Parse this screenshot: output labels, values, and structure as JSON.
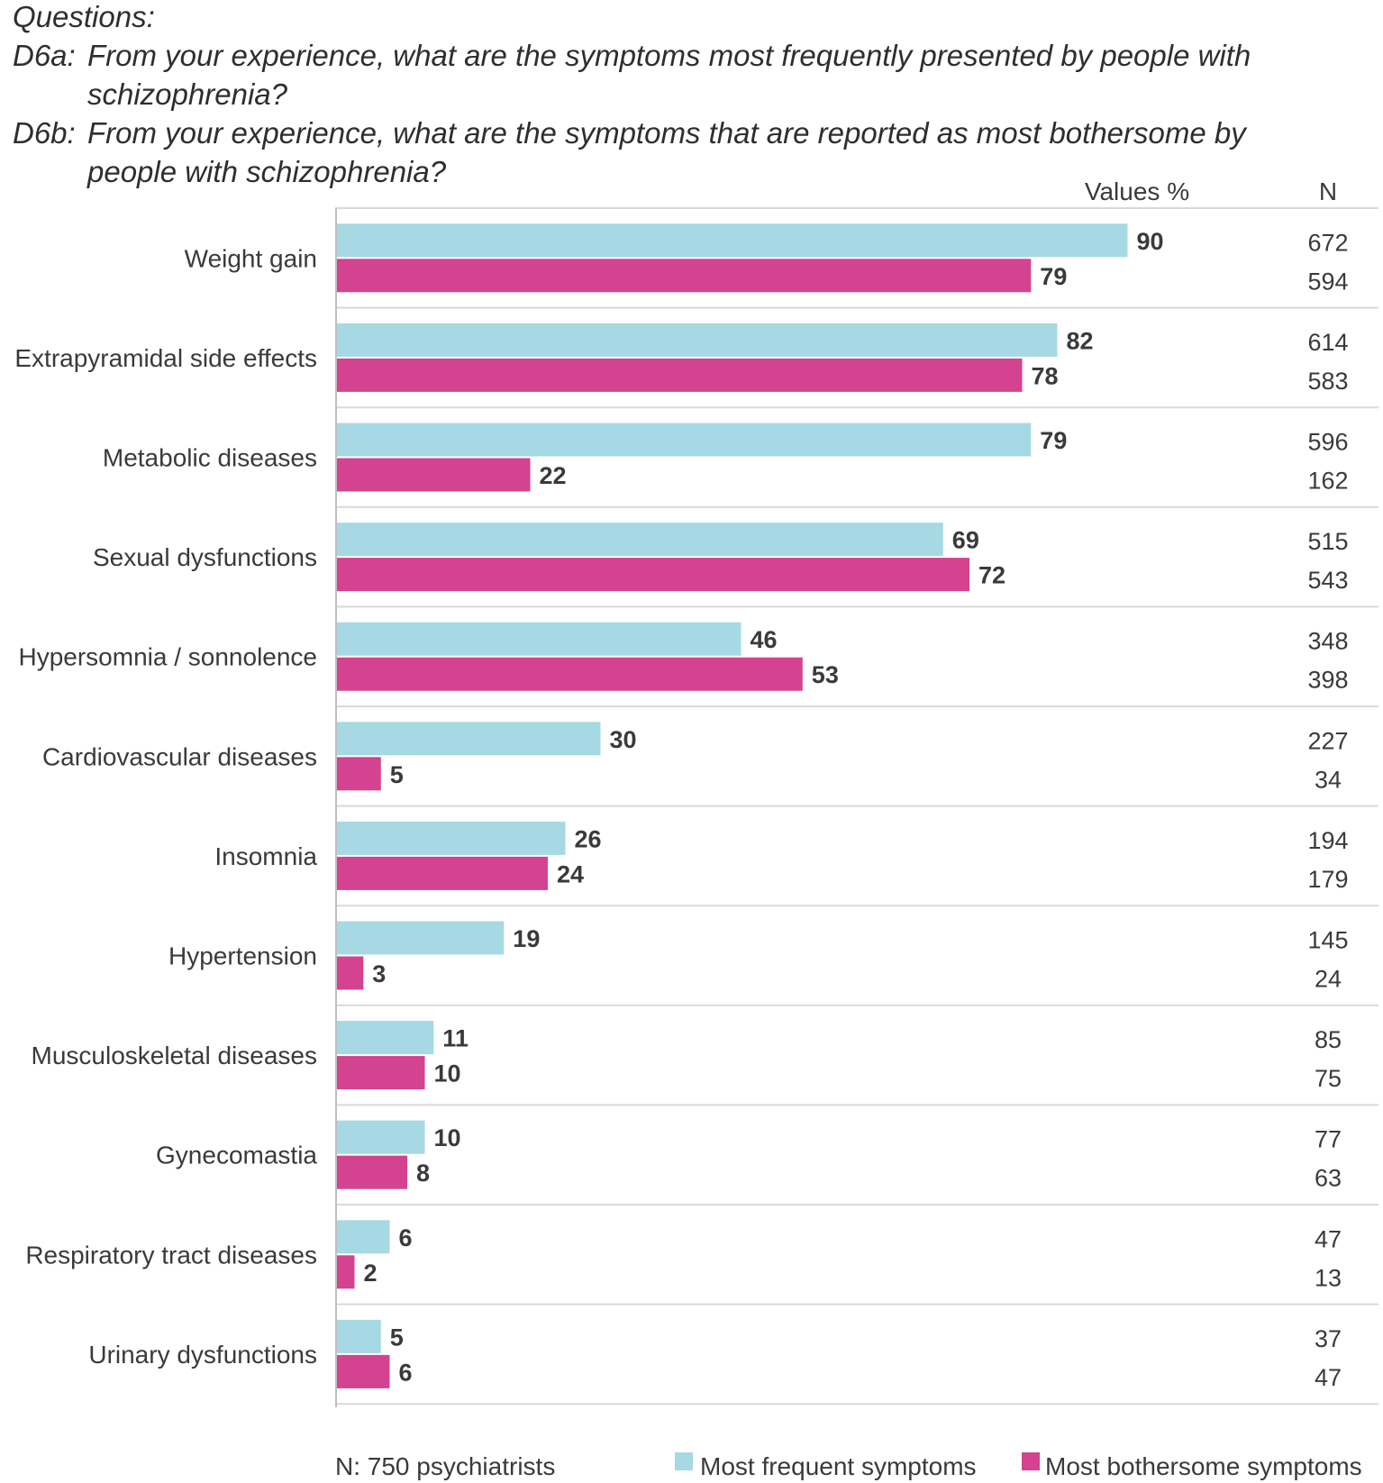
{
  "questions": {
    "heading": "Questions:",
    "d6a_label": "D6a:",
    "d6a_line1": "From your experience, what are the symptoms most frequently presented by people with",
    "d6a_line2": "schizophrenia?",
    "d6b_label": "D6b:",
    "d6b_line1": "From your experience, what are the symptoms that are reported as most bothersome by",
    "d6b_line2": "people with schizophrenia?"
  },
  "colors": {
    "frequent": "#a6d9e3",
    "bothersome": "#d3438f",
    "grid": "#d9d9d9",
    "axis": "#bfbfbf"
  },
  "chart_data": {
    "type": "bar",
    "orientation": "horizontal",
    "values_header": "Values %",
    "n_header": "N",
    "categories": [
      "Weight gain",
      "Extrapyramidal side effects",
      "Metabolic diseases",
      "Sexual dysfunctions",
      "Hypersomnia / sonnolence",
      "Cardiovascular diseases",
      "Insomnia",
      "Hypertension",
      "Musculoskeletal diseases",
      "Gynecomastia",
      "Respiratory tract diseases",
      "Urinary dysfunctions"
    ],
    "series": [
      {
        "name": "Most frequent symptoms",
        "values": [
          90,
          82,
          79,
          69,
          46,
          30,
          26,
          19,
          11,
          10,
          6,
          5
        ],
        "n": [
          672,
          614,
          596,
          515,
          348,
          227,
          194,
          145,
          85,
          77,
          47,
          37
        ]
      },
      {
        "name": "Most bothersome symptoms",
        "values": [
          79,
          78,
          22,
          72,
          53,
          5,
          24,
          3,
          10,
          8,
          2,
          6
        ],
        "n": [
          594,
          583,
          162,
          543,
          398,
          34,
          179,
          24,
          75,
          63,
          13,
          47
        ]
      }
    ],
    "xlim": [
      0,
      100
    ],
    "footnote": "N: 750 psychiatrists",
    "legend_position": "bottom-right"
  }
}
